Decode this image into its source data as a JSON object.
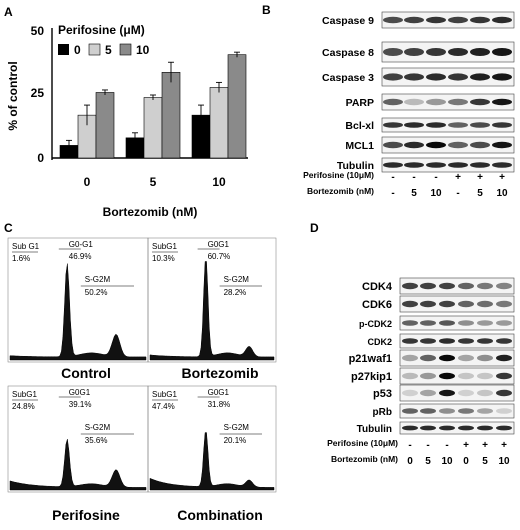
{
  "panels": {
    "A": {
      "letter": "A",
      "legend_title": "Perifosine (μM)",
      "ylabel": "% of control",
      "xlabel": "Bortezomib (nM)",
      "yticks": [
        "0",
        "25",
        "50"
      ],
      "colors": {
        "p0": "#000000",
        "p5": "#cfcfcf",
        "p10": "#8a8a8a"
      }
    },
    "B": {
      "letter": "B",
      "bands": [
        "Caspase 9",
        "Caspase 8",
        "Caspase 3",
        "PARP",
        "Bcl-xl",
        "MCL1",
        "Tubulin"
      ],
      "row1_label": "Perifosine (10μM)",
      "row1": [
        "-",
        "-",
        "-",
        "+",
        "+",
        "+"
      ],
      "row2_label": "Bortezomib (nM)",
      "row2": [
        "-",
        "5",
        "10",
        "-",
        "5",
        "10"
      ]
    },
    "C": {
      "letter": "C",
      "histograms": [
        {
          "title": "Control",
          "subg1": "Sub G1",
          "subg1_val": "1.6%",
          "g0g1": "G0-G1",
          "g0g1_val": "46.9%",
          "sg2m": "S-G2M",
          "sg2m_val": "50.2%"
        },
        {
          "title": "Bortezomib",
          "subg1": "SubG1",
          "subg1_val": "10.3%",
          "g0g1": "G0G1",
          "g0g1_val": "60.7%",
          "sg2m": "S-G2M",
          "sg2m_val": "28.2%"
        },
        {
          "title": "Perifosine",
          "subg1": "SubG1",
          "subg1_val": "24.8%",
          "g0g1": "G0G1",
          "g0g1_val": "39.1%",
          "sg2m": "S-G2M",
          "sg2m_val": "35.6%"
        },
        {
          "title": "Combination",
          "subg1": "SubG1",
          "subg1_val": "47.4%",
          "g0g1": "G0G1",
          "g0g1_val": "31.8%",
          "sg2m": "S-G2M",
          "sg2m_val": "20.1%"
        }
      ]
    },
    "D": {
      "letter": "D",
      "bands": [
        "CDK4",
        "CDK6",
        "p-CDK2",
        "CDK2",
        "p21waf1",
        "p27kip1",
        "p53",
        "pRb",
        "Tubulin"
      ],
      "row1_label": "Perifosine (10μM)",
      "row1": [
        "-",
        "-",
        "-",
        "+",
        "+",
        "+"
      ],
      "row2_label": "Bortezomib (nM)",
      "row2": [
        "0",
        "5",
        "10",
        "0",
        "5",
        "10"
      ]
    }
  },
  "chart_data": {
    "type": "bar",
    "categories": [
      "0",
      "5",
      "10"
    ],
    "series": [
      {
        "name": "0",
        "values": [
          5,
          8,
          17
        ],
        "errors": [
          2,
          2,
          4
        ]
      },
      {
        "name": "5",
        "values": [
          17,
          24,
          28
        ],
        "errors": [
          4,
          1,
          2
        ]
      },
      {
        "name": "10",
        "values": [
          26,
          34,
          41
        ],
        "errors": [
          1,
          4,
          1
        ]
      }
    ],
    "ylabel": "% of control",
    "xlabel": "Bortezomib (nM)",
    "ylim": [
      0,
      50
    ],
    "legend_title": "Perifosine (μM)",
    "legend": "top-left"
  }
}
